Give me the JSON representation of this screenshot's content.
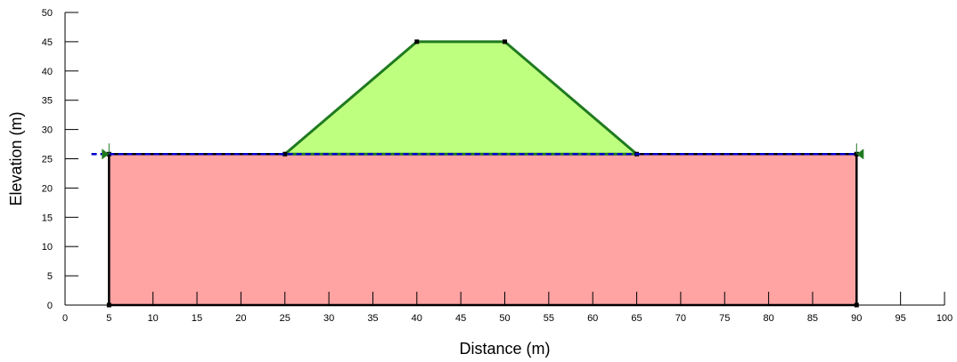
{
  "chart_data": {
    "type": "cross-section",
    "xlabel": "Distance (m)",
    "ylabel": "Elevation (m)",
    "xlim": [
      0,
      100
    ],
    "ylim": [
      0,
      50
    ],
    "x_ticks": [
      0,
      5,
      10,
      15,
      20,
      25,
      30,
      35,
      40,
      45,
      50,
      55,
      60,
      65,
      70,
      75,
      80,
      85,
      90,
      95,
      100
    ],
    "y_ticks": [
      0,
      5,
      10,
      15,
      20,
      25,
      30,
      35,
      40,
      45,
      50
    ],
    "regions": [
      {
        "name": "foundation",
        "fill": "#ffa3a3",
        "stroke": "#000000",
        "points": [
          [
            5,
            0
          ],
          [
            90,
            0
          ],
          [
            90,
            25.8
          ],
          [
            5,
            25.8
          ]
        ]
      },
      {
        "name": "embankment",
        "fill": "#bfff80",
        "stroke": "#1f7a1f",
        "points": [
          [
            25,
            25.8
          ],
          [
            40,
            45
          ],
          [
            50,
            45
          ],
          [
            65,
            25.8
          ]
        ]
      }
    ],
    "water_table": {
      "color": "#0000cc",
      "points": [
        [
          3,
          25.8
        ],
        [
          90,
          25.8
        ]
      ]
    },
    "colors": {
      "axis": "#000000",
      "foundation_fill": "#ffa3a3",
      "embankment_fill": "#bfff80",
      "embankment_stroke": "#1f7a1f",
      "water_table": "#0000cc",
      "marker": "#1f7a1f"
    }
  }
}
